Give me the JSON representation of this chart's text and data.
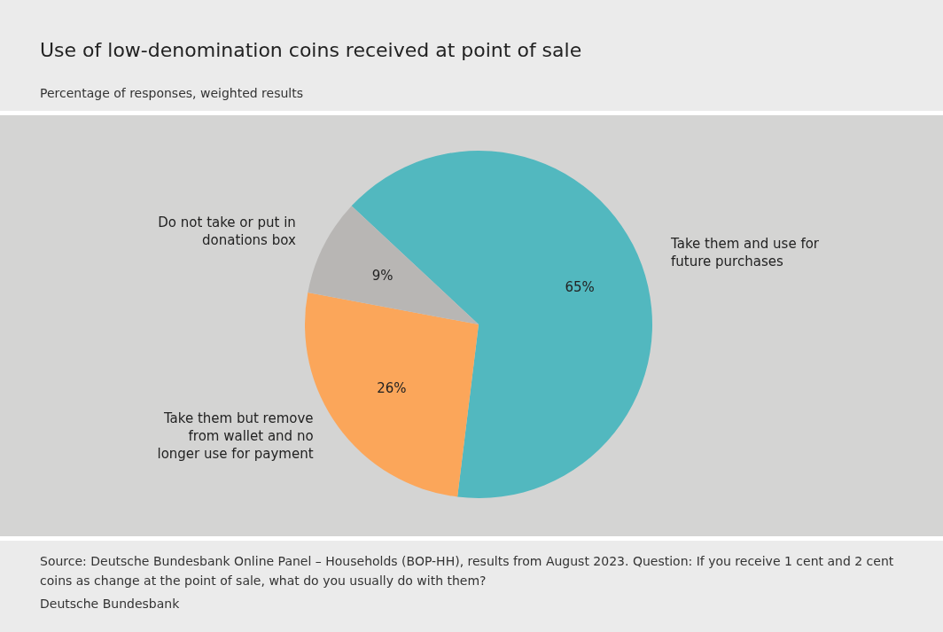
{
  "chart_data": {
    "type": "pie",
    "title": "Use of low-denomination coins received at point of sale",
    "subtitle": "Percentage of responses, weighted results",
    "categories": [
      "Take them and use for future purchases",
      "Take them but remove from wallet and no longer use for payment",
      "Do not take or put in donations box"
    ],
    "values": [
      65,
      26,
      9
    ],
    "value_labels": [
      "65%",
      "26%",
      "9%"
    ],
    "colors": [
      "#52b8bf",
      "#fba65a",
      "#b8b6b4"
    ],
    "annotations": [
      "Source: Deutsche Bundesbank Online Panel – Households (BOP-HH), results from August 2023. Question: If you receive 1 cent and 2 cent coins as change at the point of sale, what do you usually do with them?",
      "Deutsche Bundesbank"
    ]
  }
}
